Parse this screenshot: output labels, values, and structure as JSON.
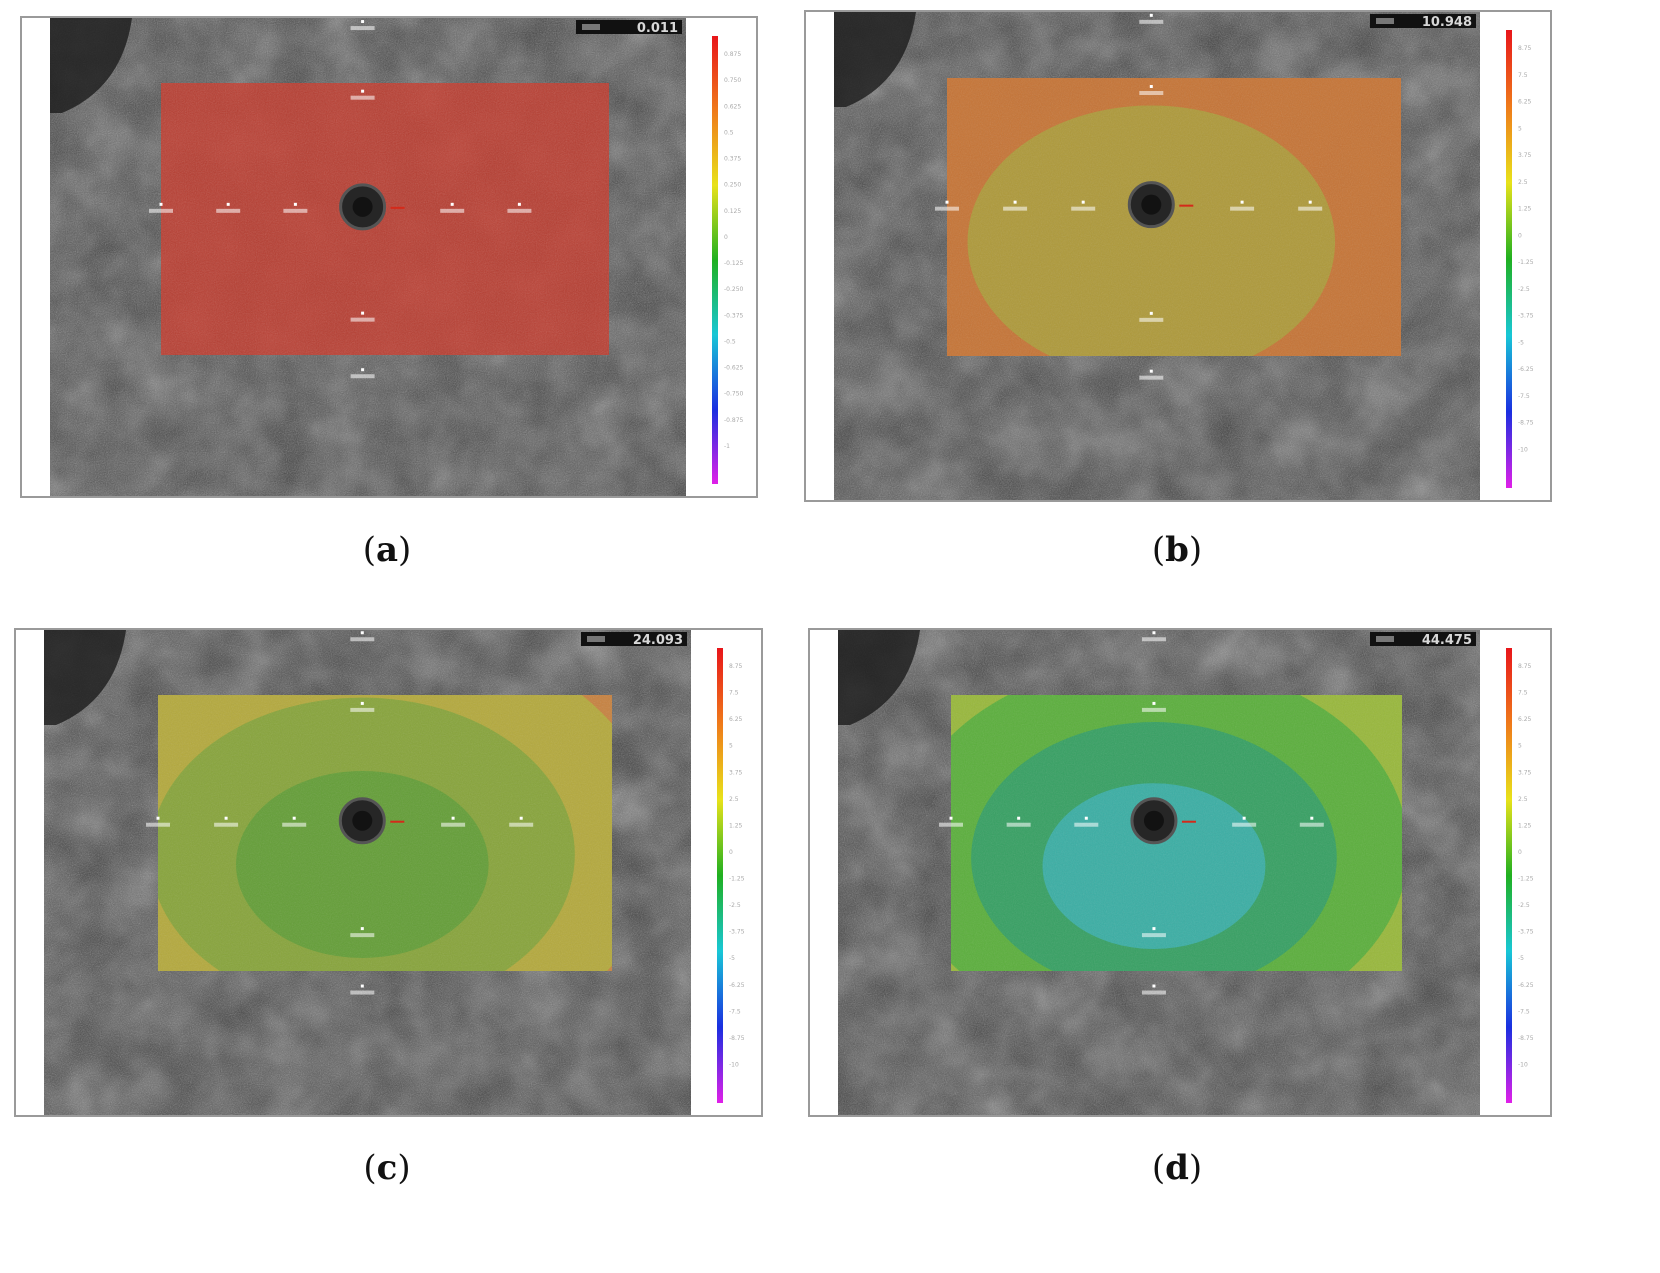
{
  "panels": [
    {
      "id": "a",
      "caption_letter": "a",
      "readout": "0.011",
      "fill_levels": [
        "#c63a2c"
      ],
      "colorbar_ticks": [
        "0.875",
        "0.750",
        "0.625",
        "0.5",
        "0.375",
        "0.250",
        "0.125",
        "0",
        "-0.125",
        "-0.250",
        "-0.375",
        "-0.5",
        "-0.625",
        "-0.750",
        "-0.875",
        "-1"
      ]
    },
    {
      "id": "b",
      "caption_letter": "b",
      "readout": "10.948",
      "fill_levels": [
        "#c64a2e",
        "#c87a35",
        "#a9a03a"
      ],
      "colorbar_ticks": [
        "8.75",
        "7.5",
        "6.25",
        "5",
        "3.75",
        "2.5",
        "1.25",
        "0",
        "-1.25",
        "-2.5",
        "-3.75",
        "-5",
        "-6.25",
        "-7.5",
        "-8.75",
        "-10"
      ]
    },
    {
      "id": "c",
      "caption_letter": "c",
      "readout": "24.093",
      "fill_levels": [
        "#c9513a",
        "#c98a40",
        "#b0b03c",
        "#7fa33a",
        "#5d9e36"
      ],
      "colorbar_ticks": [
        "8.75",
        "7.5",
        "6.25",
        "5",
        "3.75",
        "2.5",
        "1.25",
        "0",
        "-1.25",
        "-2.5",
        "-3.75",
        "-5",
        "-6.25",
        "-7.5",
        "-8.75",
        "-10"
      ]
    },
    {
      "id": "d",
      "caption_letter": "d",
      "readout": "44.475",
      "fill_levels": [
        "#c9553a",
        "#c8a43c",
        "#8fbd3a",
        "#4fad3c",
        "#2f9e6a",
        "#3ab0b0"
      ],
      "colorbar_ticks": [
        "8.75",
        "7.5",
        "6.25",
        "5",
        "3.75",
        "2.5",
        "1.25",
        "0",
        "-1.25",
        "-2.5",
        "-3.75",
        "-5",
        "-6.25",
        "-7.5",
        "-8.75",
        "-10"
      ]
    }
  ],
  "colors": {
    "frame": "#9a9a9a",
    "pupil": "#262626",
    "colorbar_stops": [
      "#e8151a",
      "#ef7a1a",
      "#e8e21a",
      "#20b020",
      "#18c7d6",
      "#1a2fe0",
      "#e020e8"
    ]
  }
}
